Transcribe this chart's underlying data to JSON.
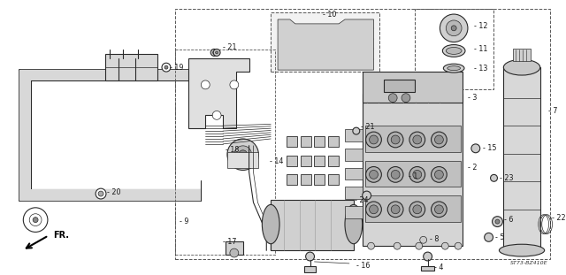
{
  "bg_color": "#ffffff",
  "fig_width": 6.4,
  "fig_height": 3.11,
  "dpi": 100,
  "watermark": "ST73-BZ410E",
  "fr_label": "FR.",
  "line_color": "#2a2a2a",
  "text_color": "#1a1a1a",
  "label_fontsize": 5.8,
  "gray_fill": "#cccccc",
  "light_gray": "#e0e0e0",
  "mid_gray": "#b8b8b8",
  "dark_gray": "#888888"
}
